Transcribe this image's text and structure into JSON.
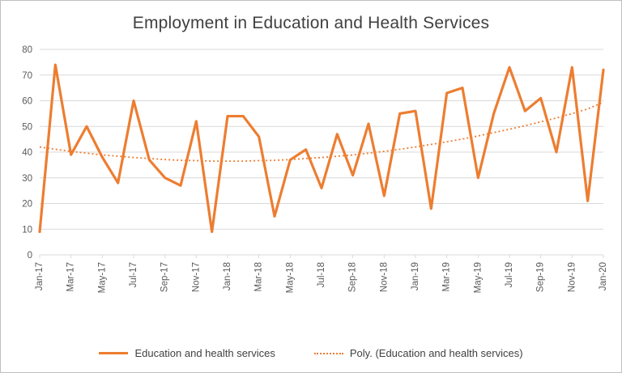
{
  "chart_data": {
    "type": "line",
    "title": "Employment in Education and Health Services",
    "xlabel": "",
    "ylabel": "",
    "ylim": [
      0,
      80
    ],
    "yticks": [
      0,
      10,
      20,
      30,
      40,
      50,
      60,
      70,
      80
    ],
    "grid": true,
    "legend_position": "bottom",
    "x_label_step": 2,
    "categories": [
      "Jan-17",
      "Feb-17",
      "Mar-17",
      "Apr-17",
      "May-17",
      "Jun-17",
      "Jul-17",
      "Aug-17",
      "Sep-17",
      "Oct-17",
      "Nov-17",
      "Dec-17",
      "Jan-18",
      "Feb-18",
      "Mar-18",
      "Apr-18",
      "May-18",
      "Jun-18",
      "Jul-18",
      "Aug-18",
      "Sep-18",
      "Oct-18",
      "Nov-18",
      "Dec-18",
      "Jan-19",
      "Feb-19",
      "Mar-19",
      "Apr-19",
      "May-19",
      "Jun-19",
      "Jul-19",
      "Aug-19",
      "Sep-19",
      "Oct-19",
      "Nov-19",
      "Dec-19",
      "Jan-20"
    ],
    "series": [
      {
        "name": "Education and health services",
        "style": "solid",
        "values": [
          9,
          74,
          39,
          50,
          38,
          28,
          60,
          37,
          30,
          27,
          52,
          9,
          54,
          54,
          46,
          15,
          37,
          41,
          26,
          47,
          31,
          51,
          23,
          55,
          56,
          18,
          63,
          65,
          30,
          55,
          73,
          56,
          61,
          40,
          73,
          21,
          72
        ]
      },
      {
        "name": "Poly. (Education and health services)",
        "style": "dotted",
        "values": [
          42.0,
          41.1,
          40.3,
          39.6,
          38.9,
          38.4,
          37.9,
          37.5,
          37.1,
          36.8,
          36.7,
          36.5,
          36.5,
          36.5,
          36.7,
          36.8,
          37.1,
          37.5,
          37.9,
          38.4,
          38.9,
          39.6,
          40.3,
          41.1,
          42.0,
          43.0,
          44.0,
          45.1,
          46.3,
          47.6,
          48.9,
          50.3,
          51.8,
          53.3,
          55.0,
          56.8,
          59.5
        ]
      }
    ],
    "colors": {
      "series": "#ED7D31",
      "gridline": "#D9D9D9",
      "axis_text": "#595959",
      "title_text": "#404040",
      "frame_border": "#BFBFBF"
    }
  }
}
